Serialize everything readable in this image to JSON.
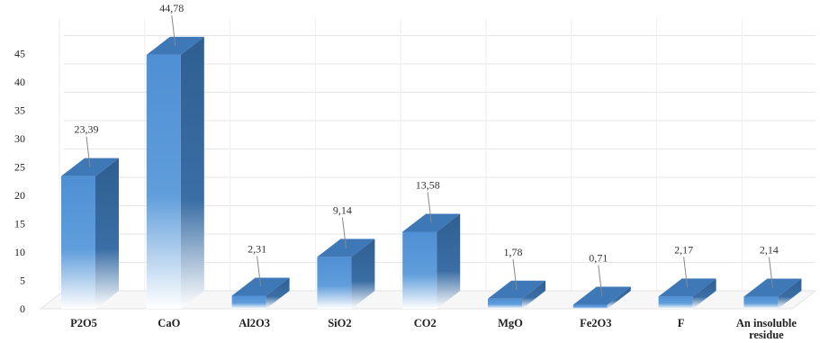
{
  "chart_data": {
    "type": "bar",
    "title": "",
    "xlabel": "",
    "ylabel": "",
    "categories": [
      "P2O5",
      "CaO",
      "Al2O3",
      "SiO2",
      "CO2",
      "MgO",
      "Fe2O3",
      "F",
      "An insoluble residue"
    ],
    "values": [
      23.39,
      44.78,
      2.31,
      9.14,
      13.58,
      1.78,
      0.71,
      2.17,
      2.14
    ],
    "data_labels": [
      "23,39",
      "44,78",
      "2,31",
      "9,14",
      "13,58",
      "1,78",
      "0,71",
      "2,17",
      "2,14"
    ],
    "yticks": [
      0,
      5,
      10,
      15,
      20,
      25,
      30,
      35,
      40,
      45
    ],
    "ylim": [
      0,
      48
    ],
    "grid": true,
    "legend": "none",
    "style": "3d-column",
    "colors": {
      "front_top": "#4f8fd4",
      "front_bottom": "#ffffff",
      "side": "#2f5f91",
      "top": "#3f78b6"
    }
  }
}
